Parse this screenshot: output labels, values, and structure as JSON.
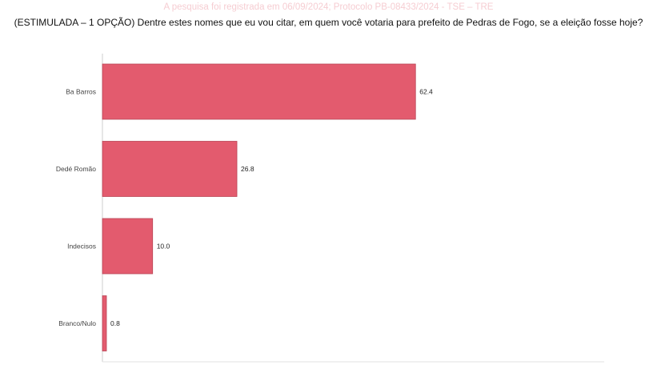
{
  "header": {
    "watermark": "A pesquisa foi registrada em 06/09/2024; Protocolo PB-08433/2024 - TSE – TRE",
    "question": "(ESTIMULADA – 1 OPÇÃO) Dentre estes nomes que eu vou citar, em quem você votaria para prefeito de Pedras de Fogo, se a eleição fosse hoje?"
  },
  "chart_data": {
    "type": "bar",
    "orientation": "horizontal",
    "categories": [
      "Ba Barros",
      "Dedé Romão",
      "Indecisos",
      "Branco/Nulo"
    ],
    "values": [
      62.4,
      26.8,
      10.0,
      0.8
    ],
    "value_labels": [
      "62.4",
      "26.8",
      "10.0",
      "0.8"
    ],
    "xlim": [
      0,
      100
    ],
    "grid": false,
    "bar_color": "#e35b6e",
    "bar_edge_color": "#b84555"
  }
}
